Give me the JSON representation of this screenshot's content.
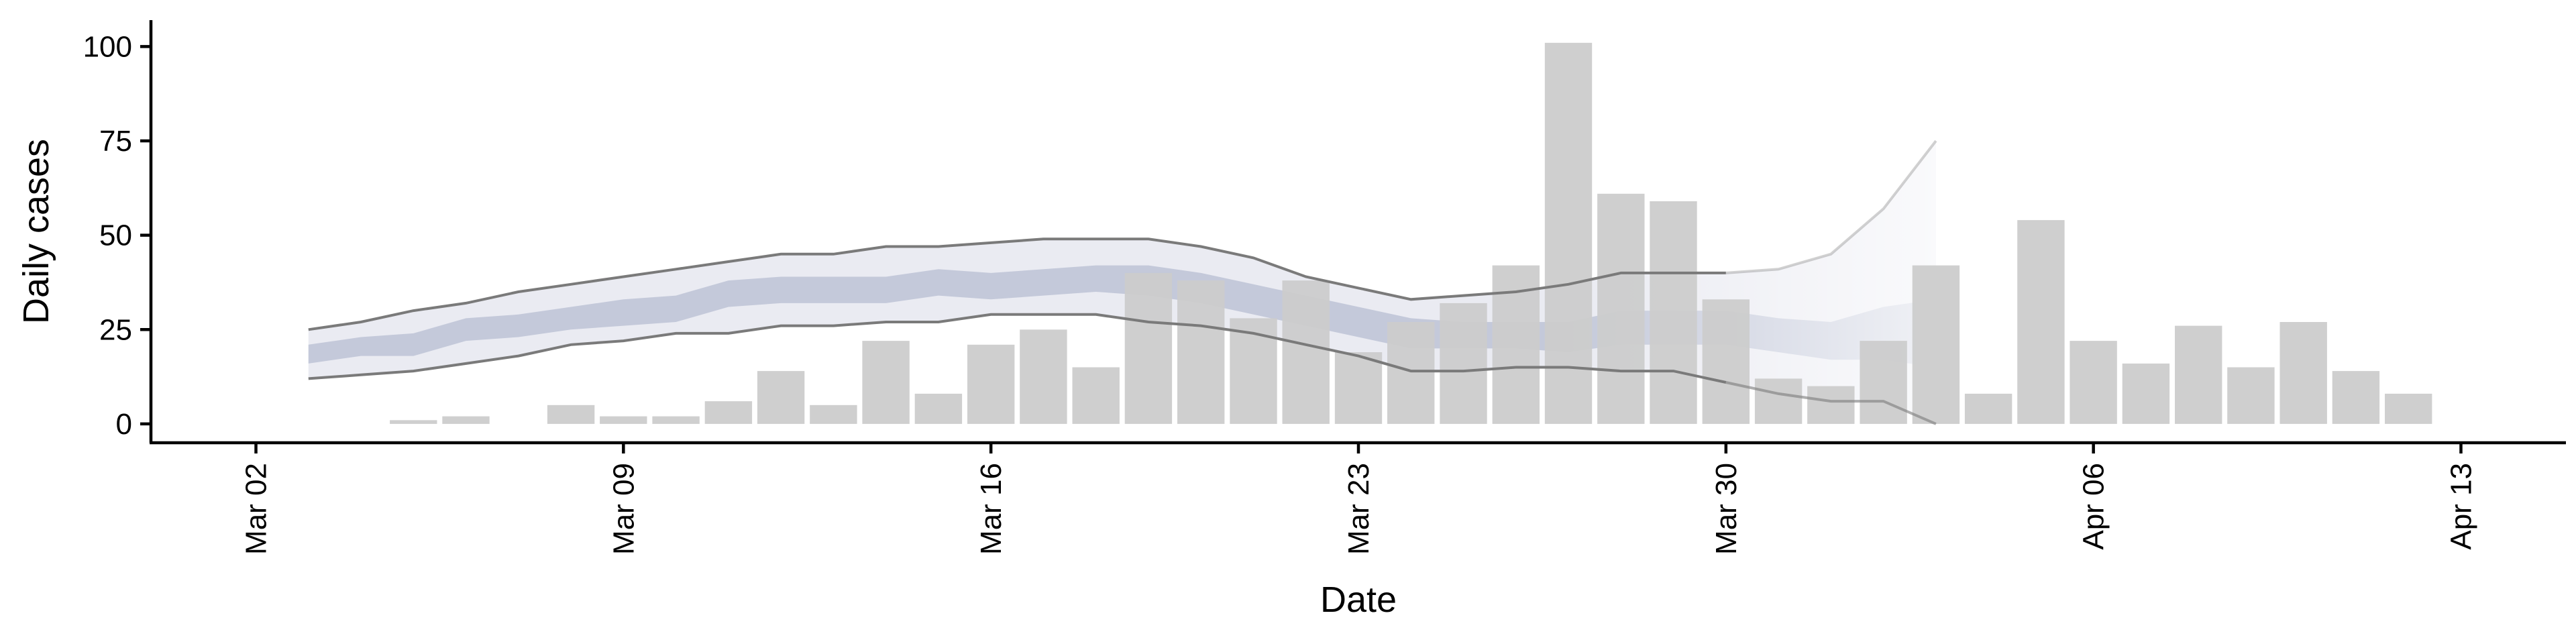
{
  "chart_data": {
    "type": "bar",
    "xlabel": "Date",
    "ylabel": "Daily cases",
    "ylim": [
      -5,
      107
    ],
    "xlim": [
      "2020-02-29",
      "2020-04-15"
    ],
    "y_ticks": [
      0,
      25,
      50,
      75,
      100
    ],
    "x_ticks": [
      {
        "date": "2020-03-02",
        "label": "Mar 02"
      },
      {
        "date": "2020-03-09",
        "label": "Mar 09"
      },
      {
        "date": "2020-03-16",
        "label": "Mar 16"
      },
      {
        "date": "2020-03-23",
        "label": "Mar 23"
      },
      {
        "date": "2020-03-30",
        "label": "Mar 30"
      },
      {
        "date": "2020-04-06",
        "label": "Apr 06"
      },
      {
        "date": "2020-04-13",
        "label": "Apr 13"
      }
    ],
    "grid": false,
    "legend": "none",
    "colors": {
      "bars": "#cccccc",
      "outer_band": "#e8e9f1",
      "inner_band": "#bdc3d6",
      "bound_lines": "#7a7a7a",
      "axis": "#000000"
    },
    "bars": {
      "dates": [
        "2020-03-05",
        "2020-03-06",
        "2020-03-08",
        "2020-03-09",
        "2020-03-10",
        "2020-03-11",
        "2020-03-12",
        "2020-03-13",
        "2020-03-14",
        "2020-03-15",
        "2020-03-16",
        "2020-03-17",
        "2020-03-18",
        "2020-03-19",
        "2020-03-20",
        "2020-03-21",
        "2020-03-22",
        "2020-03-23",
        "2020-03-24",
        "2020-03-25",
        "2020-03-26",
        "2020-03-27",
        "2020-03-28",
        "2020-03-29",
        "2020-03-30",
        "2020-03-31",
        "2020-04-01",
        "2020-04-02",
        "2020-04-03",
        "2020-04-04",
        "2020-04-05",
        "2020-04-06",
        "2020-04-07",
        "2020-04-08",
        "2020-04-09",
        "2020-04-10",
        "2020-04-11",
        "2020-04-12"
      ],
      "values": [
        1,
        2,
        5,
        2,
        2,
        6,
        14,
        5,
        22,
        8,
        21,
        25,
        15,
        40,
        38,
        28,
        38,
        19,
        27,
        32,
        42,
        101,
        61,
        59,
        33,
        12,
        10,
        22,
        42,
        8,
        54,
        22,
        16,
        26,
        15,
        27,
        14,
        8
      ]
    },
    "band": {
      "dates": [
        "2020-03-03",
        "2020-03-04",
        "2020-03-05",
        "2020-03-06",
        "2020-03-07",
        "2020-03-08",
        "2020-03-09",
        "2020-03-10",
        "2020-03-11",
        "2020-03-12",
        "2020-03-13",
        "2020-03-14",
        "2020-03-15",
        "2020-03-16",
        "2020-03-17",
        "2020-03-18",
        "2020-03-19",
        "2020-03-20",
        "2020-03-21",
        "2020-03-22",
        "2020-03-23",
        "2020-03-24",
        "2020-03-25",
        "2020-03-26",
        "2020-03-27",
        "2020-03-28",
        "2020-03-29",
        "2020-03-30",
        "2020-03-31",
        "2020-04-01",
        "2020-04-02",
        "2020-04-03"
      ],
      "upper": [
        25,
        27,
        30,
        32,
        35,
        37,
        39,
        41,
        43,
        45,
        45,
        47,
        47,
        48,
        49,
        49,
        49,
        47,
        44,
        39,
        36,
        33,
        34,
        35,
        37,
        40,
        40,
        40,
        41,
        45,
        57,
        75
      ],
      "inner_upper": [
        21,
        23,
        24,
        28,
        29,
        31,
        33,
        34,
        38,
        39,
        39,
        39,
        41,
        40,
        41,
        42,
        42,
        40,
        37,
        34,
        31,
        28,
        27,
        27,
        27,
        30,
        30,
        30,
        28,
        27,
        31,
        33
      ],
      "inner_lower": [
        16,
        18,
        18,
        22,
        23,
        25,
        26,
        27,
        31,
        32,
        32,
        32,
        34,
        33,
        34,
        35,
        34,
        32,
        29,
        26,
        23,
        20,
        20,
        20,
        19,
        21,
        21,
        21,
        19,
        17,
        17,
        15
      ],
      "lower": [
        12,
        13,
        14,
        16,
        18,
        21,
        22,
        24,
        24,
        26,
        26,
        27,
        27,
        29,
        29,
        29,
        27,
        26,
        24,
        21,
        18,
        14,
        14,
        15,
        15,
        14,
        14,
        11,
        8,
        6,
        6,
        0
      ]
    }
  }
}
